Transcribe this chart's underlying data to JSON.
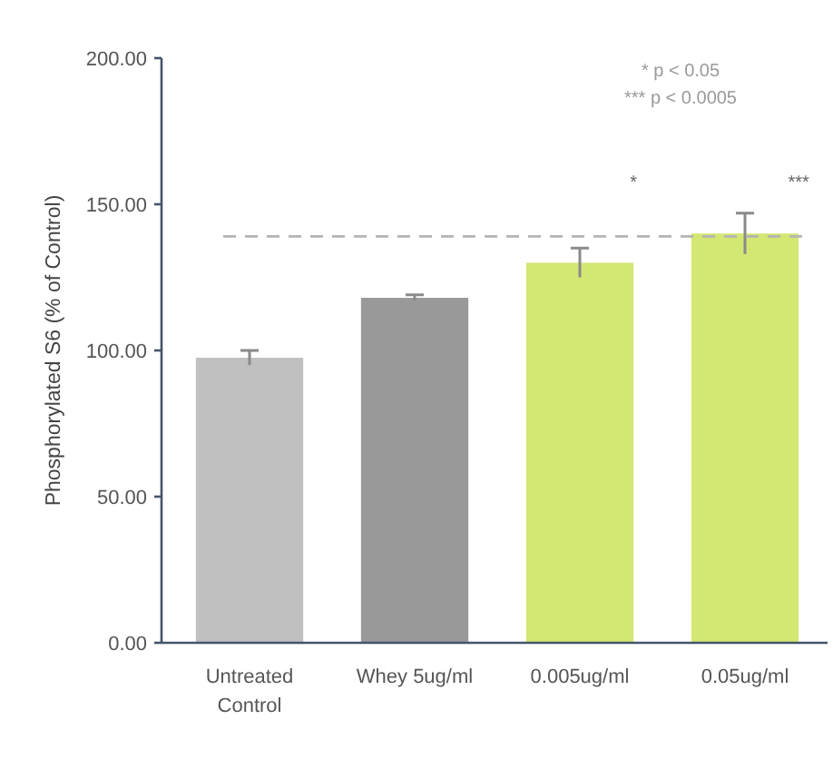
{
  "chart_data": {
    "type": "bar",
    "categories": [
      "Untreated Control",
      "Whey 5ug/ml",
      "0.005ug/ml",
      "0.05ug/ml"
    ],
    "values": [
      97.5,
      118,
      130,
      140
    ],
    "errors": [
      2.5,
      1,
      5,
      7
    ],
    "colors": [
      "#c0c0c0",
      "#999999",
      "#d3e773",
      "#d3e773"
    ],
    "ylabel": "Phosphorylated S6 (% of Control)",
    "ylim": [
      0,
      200
    ],
    "yticks": [
      {
        "value": 0,
        "label": "0.00"
      },
      {
        "value": 50,
        "label": "50.00"
      },
      {
        "value": 100,
        "label": "100.00"
      },
      {
        "value": 150,
        "label": "150.00"
      },
      {
        "value": 200,
        "label": "200.00"
      }
    ],
    "ref_lines": [
      {
        "axis": "y",
        "value": 139,
        "color": "#b4b4b4",
        "line_style": "dashed"
      }
    ],
    "annotations": [
      "* p < 0.05",
      "*** p < 0.0005",
      "*",
      "***"
    ]
  }
}
